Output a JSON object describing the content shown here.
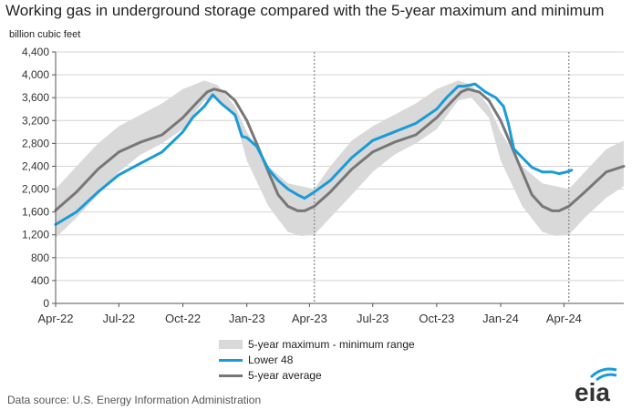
{
  "chart_data": {
    "type": "line",
    "title": "Working gas in underground  storage compared with the 5-year maximum and minimum",
    "ylabel": "billion cubic feet",
    "ylim": [
      0,
      4400
    ],
    "yticks": [
      0,
      400,
      800,
      1200,
      1600,
      2000,
      2400,
      2800,
      3200,
      3600,
      4000,
      4400
    ],
    "ytick_labels": [
      "0",
      "400",
      "800",
      "1,200",
      "1,600",
      "2,000",
      "2,400",
      "2,800",
      "3,200",
      "3,600",
      "4,000",
      "4,400"
    ],
    "xlim": [
      "2022-04-01",
      "2024-06-26"
    ],
    "xticks": [
      {
        "date": "2022-04-01",
        "label": "Apr-22"
      },
      {
        "date": "2022-07-01",
        "label": "Jul-22"
      },
      {
        "date": "2022-10-01",
        "label": "Oct-22"
      },
      {
        "date": "2023-01-01",
        "label": "Jan-23"
      },
      {
        "date": "2023-04-01",
        "label": "Apr-23"
      },
      {
        "date": "2023-07-01",
        "label": "Jul-23"
      },
      {
        "date": "2023-10-01",
        "label": "Oct-23"
      },
      {
        "date": "2024-01-01",
        "label": "Jan-24"
      },
      {
        "date": "2024-04-01",
        "label": "Apr-24"
      }
    ],
    "grid": true,
    "vertical_markers": [
      "2023-04-08",
      "2024-04-08"
    ],
    "series": [
      {
        "name": "5-year maximum - minimum range",
        "kind": "band",
        "color": "#d9d9d9",
        "x": [
          "2022-04-01",
          "2022-05-01",
          "2022-06-01",
          "2022-07-01",
          "2022-08-01",
          "2022-09-01",
          "2022-10-01",
          "2022-11-01",
          "2022-11-20",
          "2022-12-15",
          "2023-01-01",
          "2023-02-01",
          "2023-03-01",
          "2023-03-20",
          "2023-04-08",
          "2023-05-01",
          "2023-06-01",
          "2023-07-01",
          "2023-08-01",
          "2023-09-01",
          "2023-10-01",
          "2023-11-01",
          "2023-11-20",
          "2023-12-15",
          "2024-01-01",
          "2024-02-01",
          "2024-03-01",
          "2024-03-20",
          "2024-04-08",
          "2024-05-01",
          "2024-06-01",
          "2024-06-26"
        ],
        "upper": [
          2000,
          2400,
          2800,
          3100,
          3300,
          3500,
          3750,
          3900,
          3820,
          3450,
          3000,
          2400,
          2100,
          2050,
          2000,
          2400,
          2850,
          3100,
          3300,
          3500,
          3750,
          3900,
          3820,
          3450,
          3000,
          2400,
          2100,
          2050,
          2000,
          2300,
          2700,
          2850
        ],
        "lower": [
          1150,
          1500,
          1900,
          2300,
          2600,
          2800,
          3050,
          3550,
          3600,
          3250,
          2500,
          1700,
          1250,
          1180,
          1200,
          1500,
          1900,
          2300,
          2600,
          2800,
          3050,
          3550,
          3600,
          3250,
          2500,
          1700,
          1250,
          1180,
          1200,
          1500,
          1850,
          2050
        ]
      },
      {
        "name": "Lower 48",
        "kind": "line",
        "color": "#1a9bd7",
        "x": [
          "2022-04-01",
          "2022-05-01",
          "2022-06-01",
          "2022-07-01",
          "2022-08-01",
          "2022-09-01",
          "2022-10-01",
          "2022-10-15",
          "2022-11-01",
          "2022-11-13",
          "2022-11-25",
          "2022-12-15",
          "2022-12-25",
          "2023-01-01",
          "2023-01-15",
          "2023-02-01",
          "2023-02-15",
          "2023-03-01",
          "2023-03-15",
          "2023-03-25",
          "2023-04-08",
          "2023-05-01",
          "2023-06-01",
          "2023-07-01",
          "2023-08-01",
          "2023-09-01",
          "2023-10-01",
          "2023-10-15",
          "2023-11-01",
          "2023-11-10",
          "2023-11-25",
          "2023-12-10",
          "2023-12-25",
          "2024-01-05",
          "2024-01-12",
          "2024-01-20",
          "2024-02-01",
          "2024-02-15",
          "2024-03-01",
          "2024-03-15",
          "2024-03-25",
          "2024-04-05",
          "2024-04-12"
        ],
        "values": [
          1380,
          1600,
          1950,
          2250,
          2450,
          2650,
          3000,
          3250,
          3450,
          3650,
          3500,
          3300,
          2920,
          2900,
          2750,
          2350,
          2150,
          2000,
          1900,
          1840,
          1950,
          2150,
          2550,
          2850,
          3000,
          3150,
          3400,
          3600,
          3800,
          3800,
          3840,
          3700,
          3600,
          3450,
          3150,
          2700,
          2550,
          2380,
          2300,
          2300,
          2270,
          2300,
          2330
        ]
      },
      {
        "name": "5-year average",
        "kind": "line",
        "color": "#777777",
        "x": [
          "2022-04-01",
          "2022-05-01",
          "2022-06-01",
          "2022-07-01",
          "2022-08-01",
          "2022-09-01",
          "2022-10-01",
          "2022-10-20",
          "2022-11-05",
          "2022-11-15",
          "2022-12-01",
          "2022-12-15",
          "2023-01-01",
          "2023-01-15",
          "2023-02-01",
          "2023-02-15",
          "2023-03-01",
          "2023-03-15",
          "2023-03-25",
          "2023-04-08",
          "2023-05-01",
          "2023-06-01",
          "2023-07-01",
          "2023-08-01",
          "2023-09-01",
          "2023-10-01",
          "2023-10-20",
          "2023-11-05",
          "2023-11-15",
          "2023-12-01",
          "2023-12-15",
          "2024-01-01",
          "2024-01-15",
          "2024-02-01",
          "2024-02-15",
          "2024-03-01",
          "2024-03-15",
          "2024-03-25",
          "2024-04-08",
          "2024-05-01",
          "2024-06-01",
          "2024-06-26"
        ],
        "values": [
          1630,
          1950,
          2350,
          2650,
          2820,
          2950,
          3250,
          3500,
          3700,
          3750,
          3700,
          3550,
          3200,
          2800,
          2300,
          1900,
          1700,
          1620,
          1620,
          1700,
          1950,
          2350,
          2650,
          2820,
          2950,
          3250,
          3500,
          3700,
          3750,
          3700,
          3550,
          3200,
          2800,
          2300,
          1900,
          1700,
          1620,
          1620,
          1700,
          1950,
          2300,
          2400
        ]
      }
    ]
  },
  "legend": [
    {
      "label": "5-year maximum - minimum range",
      "color": "#d9d9d9"
    },
    {
      "label": "Lower 48",
      "color": "#1a9bd7"
    },
    {
      "label": "5-year average",
      "color": "#777777"
    }
  ],
  "footer": {
    "source": "Data source:  U.S. Energy Information Administration",
    "logo_text": "eia"
  }
}
